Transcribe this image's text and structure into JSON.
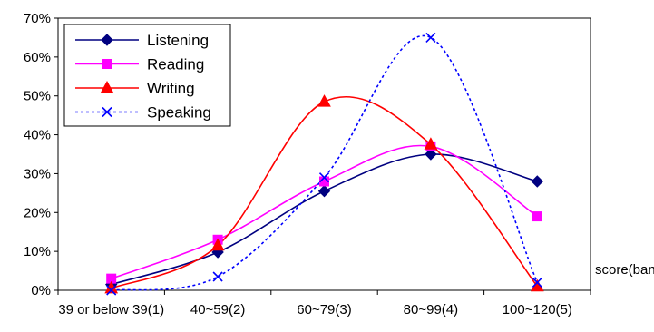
{
  "chart_data": {
    "type": "line",
    "title": "",
    "xlabel": "score(band)",
    "ylabel": "",
    "categories": [
      "39 or below 39(1)",
      "40~59(2)",
      "60~79(3)",
      "80~99(4)",
      "100~120(5)"
    ],
    "yticks": [
      "0%",
      "10%",
      "20%",
      "30%",
      "40%",
      "50%",
      "60%",
      "70%"
    ],
    "ylim": [
      0,
      70
    ],
    "grid": false,
    "smooth": true,
    "legend_position": "top-left",
    "series": [
      {
        "name": "Listening",
        "values": [
          1.5,
          9.8,
          25.5,
          35,
          28
        ],
        "color": "#000080",
        "marker": "diamond",
        "dash": "solid"
      },
      {
        "name": "Reading",
        "values": [
          3,
          13,
          28,
          37,
          19
        ],
        "color": "#ff00ff",
        "marker": "square",
        "dash": "solid"
      },
      {
        "name": "Writing",
        "values": [
          0.5,
          11.5,
          48.5,
          37.5,
          1
        ],
        "color": "#ff0000",
        "marker": "triangle",
        "dash": "solid"
      },
      {
        "name": "Speaking",
        "values": [
          0,
          3.5,
          29,
          65,
          2
        ],
        "color": "#0000ff",
        "marker": "x",
        "dash": "dotted"
      }
    ]
  }
}
